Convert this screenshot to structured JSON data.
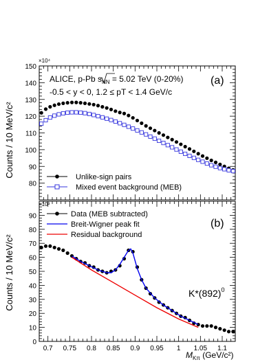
{
  "chart_data": [
    {
      "type": "scatter",
      "panel_label": "(a)",
      "ylabel": "Counts / 10 MeV/c²",
      "y_exponent": "×10⁴",
      "ylim": [
        70,
        150
      ],
      "xlim": [
        0.68,
        1.13
      ],
      "annotation_line1_a": "ALICE, p-Pb ",
      "annotation_sqrt": "s",
      "annotation_sub": "NN",
      "annotation_line1_b": " = 5.02 TeV (0-20%)",
      "annotation_line2": "-0.5 < y < 0, 1.2 ≤ pT < 1.4 GeV/c",
      "y_ticks": [
        80,
        90,
        100,
        110,
        120,
        130,
        140,
        150
      ],
      "series": [
        {
          "name": "Unlike-sign pairs",
          "color": "#000000",
          "marker": "filled-circle",
          "x": [
            0.685,
            0.695,
            0.705,
            0.715,
            0.725,
            0.735,
            0.745,
            0.755,
            0.765,
            0.775,
            0.785,
            0.795,
            0.805,
            0.815,
            0.825,
            0.835,
            0.845,
            0.855,
            0.865,
            0.875,
            0.885,
            0.895,
            0.905,
            0.915,
            0.925,
            0.935,
            0.945,
            0.955,
            0.965,
            0.975,
            0.985,
            0.995,
            1.005,
            1.015,
            1.025,
            1.035,
            1.045,
            1.055,
            1.065,
            1.075,
            1.085,
            1.095,
            1.105,
            1.115,
            1.125
          ],
          "y": [
            122.0,
            124.2,
            125.6,
            126.5,
            127.2,
            127.7,
            128.0,
            128.2,
            128.2,
            128.0,
            127.7,
            127.3,
            126.9,
            126.3,
            125.6,
            124.9,
            124.0,
            123.0,
            122.2,
            121.6,
            120.4,
            119.0,
            117.4,
            115.8,
            114.2,
            112.8,
            111.4,
            110.0,
            108.7,
            107.3,
            106.0,
            104.6,
            103.2,
            101.8,
            100.4,
            99.0,
            97.6,
            96.2,
            94.9,
            93.6,
            92.4,
            91.2,
            90.0,
            88.9,
            87.9
          ]
        },
        {
          "name": "Mixed event background (MEB)",
          "color": "#3333dd",
          "marker": "open-square",
          "x": [
            0.685,
            0.695,
            0.705,
            0.715,
            0.725,
            0.735,
            0.745,
            0.755,
            0.765,
            0.775,
            0.785,
            0.795,
            0.805,
            0.815,
            0.825,
            0.835,
            0.845,
            0.855,
            0.865,
            0.875,
            0.885,
            0.895,
            0.905,
            0.915,
            0.925,
            0.935,
            0.945,
            0.955,
            0.965,
            0.975,
            0.985,
            0.995,
            1.005,
            1.015,
            1.025,
            1.035,
            1.045,
            1.055,
            1.065,
            1.075,
            1.085,
            1.095,
            1.105,
            1.115,
            1.125
          ],
          "y": [
            115.5,
            117.6,
            119.2,
            120.3,
            121.1,
            121.7,
            122.1,
            122.3,
            122.3,
            122.1,
            121.8,
            121.3,
            120.7,
            120.0,
            119.3,
            118.5,
            117.7,
            116.8,
            115.8,
            114.8,
            113.7,
            112.6,
            111.5,
            110.3,
            109.1,
            107.8,
            106.6,
            105.3,
            104.0,
            102.7,
            101.4,
            100.1,
            98.8,
            97.5,
            96.3,
            95.1,
            93.9,
            92.8,
            91.7,
            90.7,
            89.8,
            89.0,
            88.3,
            87.7,
            87.2
          ]
        }
      ]
    },
    {
      "type": "scatter",
      "panel_label": "(b)",
      "ylabel": "Counts / 10 MeV/c²",
      "y_exponent": "×10³",
      "ylim": [
        0,
        100
      ],
      "xlim": [
        0.68,
        1.13
      ],
      "xlabel_main": "M",
      "xlabel_sub": "Kπ",
      "xlabel_unit": " (GeV/c²)",
      "particle_label": "K*(892)",
      "particle_sup": "0",
      "y_ticks": [
        0,
        10,
        20,
        30,
        40,
        50,
        60,
        70,
        80,
        90
      ],
      "x_ticks": [
        "0.7",
        "0.75",
        "0.8",
        "0.85",
        "0.9",
        "0.95",
        "1",
        "1.05",
        "1.1"
      ],
      "x_tick_values": [
        0.7,
        0.75,
        0.8,
        0.85,
        0.9,
        0.95,
        1.0,
        1.05,
        1.1
      ],
      "series": [
        {
          "name": "Data (MEB subtracted)",
          "color": "#000000",
          "marker": "filled-circle",
          "x": [
            0.685,
            0.695,
            0.705,
            0.715,
            0.725,
            0.735,
            0.745,
            0.755,
            0.765,
            0.775,
            0.785,
            0.795,
            0.805,
            0.815,
            0.825,
            0.835,
            0.845,
            0.855,
            0.865,
            0.875,
            0.885,
            0.895,
            0.905,
            0.915,
            0.925,
            0.935,
            0.945,
            0.955,
            0.965,
            0.975,
            0.985,
            0.995,
            1.005,
            1.015,
            1.025,
            1.035,
            1.045,
            1.055,
            1.065,
            1.075,
            1.085,
            1.095,
            1.105,
            1.115,
            1.125
          ],
          "y": [
            67,
            68,
            68,
            67,
            66,
            65,
            63,
            61,
            59,
            57,
            56,
            54,
            53,
            51,
            50,
            49,
            50,
            51,
            54,
            59,
            65,
            64,
            53,
            44,
            38,
            34,
            31,
            28,
            26,
            24,
            22,
            20,
            18,
            17,
            15,
            13,
            12,
            11,
            11,
            11,
            10,
            9,
            8,
            7,
            7
          ]
        },
        {
          "name": "Breit-Wigner peak fit",
          "color": "#0000ee",
          "x": [
            0.755,
            0.775,
            0.795,
            0.815,
            0.835,
            0.845,
            0.855,
            0.865,
            0.875,
            0.885,
            0.89,
            0.895,
            0.905,
            0.915,
            0.925,
            0.945,
            0.965,
            0.985,
            1.005,
            1.025,
            1.045
          ],
          "y": [
            61,
            57,
            54,
            51,
            49,
            49,
            51,
            55,
            60,
            65,
            66,
            63,
            52,
            44,
            38,
            31,
            26,
            22,
            18,
            15,
            12
          ]
        },
        {
          "name": "Residual background",
          "color": "#ee0000",
          "x": [
            0.755,
            0.8,
            0.85,
            0.9,
            0.95,
            1.0,
            1.045
          ],
          "y": [
            60,
            51,
            42,
            33,
            24,
            16,
            10
          ]
        }
      ]
    }
  ]
}
